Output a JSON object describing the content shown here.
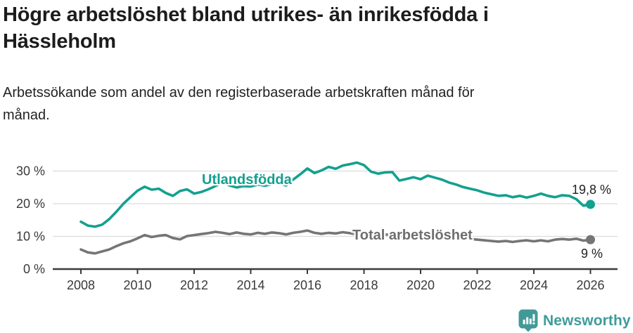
{
  "header": {
    "title": "Högre arbetslöshet bland utrikes- än inrikesfödda i\nHässleholm",
    "subtitle": "Arbetssökande som andel av den registerbaserade arbetskraften månad för\nmånad."
  },
  "footer": {
    "brand": "Newsworthy"
  },
  "colors": {
    "accent_teal": "#13a08f",
    "series_gray": "#757575",
    "logo_teal": "#419a97",
    "grid": "#dcdcdc",
    "axis": "#3a3a3a",
    "text_dark": "#1c1c1c"
  },
  "chart_data": {
    "type": "line",
    "title": "Högre arbetslöshet bland utrikes- än inrikesfödda i Hässleholm",
    "subtitle": "Arbetssökande som andel av den registerbaserade arbetskraften månad för månad.",
    "grid": "horizontal",
    "legend_position": "inline-labels",
    "x_unit": "year (monthly share of labour force, read quarterly)",
    "x_start": 2008,
    "x_step": 0.25,
    "xlim": [
      2007.5,
      2027
    ],
    "ylim": [
      0,
      33
    ],
    "y_ticks": [
      0,
      10,
      20,
      30
    ],
    "y_tick_labels": [
      "0 %",
      "10 %",
      "20 %",
      "30 %"
    ],
    "x_ticks": [
      2008,
      2010,
      2012,
      2014,
      2016,
      2018,
      2020,
      2022,
      2024,
      2026
    ],
    "x_tick_labels": [
      "2008",
      "2010",
      "2012",
      "2014",
      "2016",
      "2018",
      "2020",
      "2022",
      "2024",
      "2026"
    ],
    "series": [
      {
        "id": "utlandsfodda",
        "name": "Utlandsfödda",
        "color": "#13a08f",
        "end_label": "19,8 %",
        "end_value": 19.8,
        "values": [
          14.5,
          13.3,
          13.0,
          13.6,
          15.3,
          17.5,
          20.0,
          22.0,
          24.0,
          25.2,
          24.3,
          24.6,
          23.3,
          22.4,
          23.9,
          24.4,
          23.1,
          23.6,
          24.4,
          25.4,
          26.6,
          25.6,
          25.0,
          25.4,
          25.3,
          25.9,
          25.5,
          26.0,
          26.3,
          25.6,
          27.4,
          29.0,
          30.8,
          29.4,
          30.2,
          31.3,
          30.7,
          31.7,
          32.1,
          32.6,
          31.8,
          29.8,
          29.2,
          29.6,
          29.7,
          27.1,
          27.6,
          28.1,
          27.5,
          28.6,
          28.0,
          27.4,
          26.5,
          25.9,
          25.1,
          24.6,
          24.1,
          23.4,
          22.9,
          22.4,
          22.6,
          22.0,
          22.4,
          21.9,
          22.4,
          23.1,
          22.4,
          22.0,
          22.6,
          22.4,
          21.4,
          19.4,
          19.8
        ]
      },
      {
        "id": "total",
        "name": "Total arbetslöshet",
        "color": "#757575",
        "end_label": "9 %",
        "end_value": 9,
        "values": [
          6.0,
          5.1,
          4.8,
          5.4,
          6.0,
          7.0,
          7.9,
          8.5,
          9.4,
          10.4,
          9.8,
          10.2,
          10.4,
          9.5,
          9.1,
          10.1,
          10.4,
          10.7,
          11.0,
          11.4,
          11.1,
          10.7,
          11.2,
          10.8,
          10.6,
          11.1,
          10.8,
          11.2,
          11.0,
          10.6,
          11.1,
          11.4,
          11.8,
          11.1,
          10.8,
          11.1,
          10.9,
          11.3,
          11.0,
          10.6,
          10.8,
          10.5,
          10.3,
          10.6,
          10.3,
          10.0,
          10.2,
          10.4,
          10.2,
          10.8,
          10.5,
          10.2,
          10.0,
          9.8,
          9.5,
          9.2,
          9.0,
          8.8,
          8.6,
          8.4,
          8.6,
          8.3,
          8.6,
          8.8,
          8.5,
          8.8,
          8.5,
          9.0,
          9.2,
          9.0,
          9.3,
          8.7,
          9.0
        ]
      }
    ]
  }
}
